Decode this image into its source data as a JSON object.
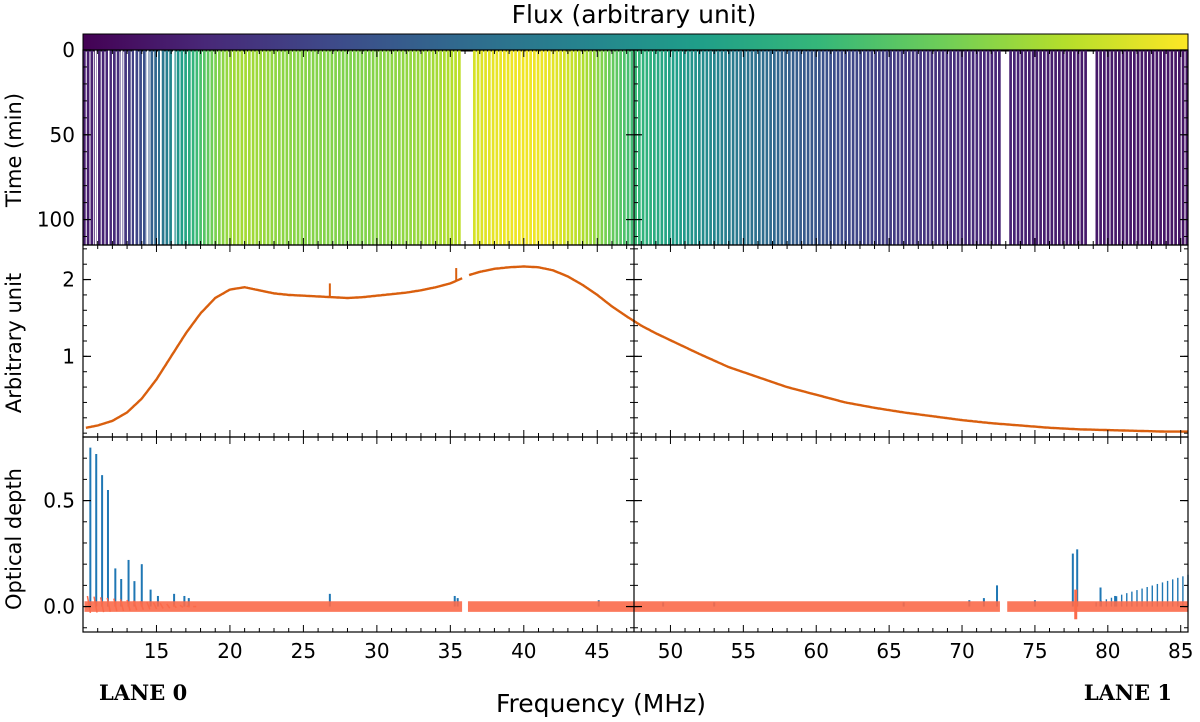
{
  "chart_data": {
    "type": "multi-panel",
    "colorbar": {
      "label": "Flux (arbitrary unit)",
      "colormap": [
        "#440154",
        "#482878",
        "#3e4989",
        "#31688e",
        "#26828e",
        "#1f9e89",
        "#35b779",
        "#6ece58",
        "#b5de2b",
        "#fde725"
      ]
    },
    "xlabel": "Frequency (MHz)",
    "lane_labels": [
      "LANE 0",
      "LANE 1"
    ],
    "lanes": [
      {
        "name": "LANE 0",
        "xlim": [
          10,
          47.5
        ],
        "xticks": [
          15,
          20,
          25,
          30,
          35,
          40,
          45
        ]
      },
      {
        "name": "LANE 1",
        "xlim": [
          47.5,
          85.5
        ],
        "xticks": [
          50,
          55,
          60,
          65,
          70,
          75,
          80,
          85
        ]
      }
    ],
    "panels": [
      {
        "name": "dynamic-spectrum",
        "type": "heatmap",
        "ylabel": "Time (min)",
        "ylim": [
          0,
          115
        ],
        "yticks": [
          0,
          50,
          100
        ],
        "y_inverted": true,
        "flux_profile_key": "spectrum",
        "flagged_ranges_mhz": [
          [
            35.6,
            36.4
          ],
          [
            72.7,
            73.0
          ],
          [
            78.6,
            79.0
          ]
        ]
      },
      {
        "name": "spectrum",
        "type": "line",
        "ylabel": "Arbitrary unit",
        "ylim": [
          -0.05,
          2.45
        ],
        "yticks": [
          1,
          2
        ],
        "color": "#d95f0e",
        "x": [
          10.2,
          11,
          12,
          13,
          14,
          15,
          16,
          17,
          18,
          19,
          20,
          21,
          22,
          23,
          24,
          25,
          26,
          27,
          28,
          29,
          30,
          31,
          32,
          33,
          34,
          35,
          35.6,
          36.3,
          37,
          38,
          39,
          40,
          41,
          42,
          43,
          44,
          45,
          46,
          47,
          48,
          49,
          50,
          52,
          54,
          56,
          58,
          60,
          62,
          64,
          66,
          68,
          70,
          72,
          74,
          76,
          78,
          80,
          82,
          84,
          85.5
        ],
        "values": [
          0.07,
          0.1,
          0.16,
          0.27,
          0.45,
          0.7,
          1.0,
          1.3,
          1.56,
          1.76,
          1.87,
          1.9,
          1.86,
          1.82,
          1.8,
          1.79,
          1.78,
          1.77,
          1.76,
          1.77,
          1.79,
          1.81,
          1.83,
          1.86,
          1.9,
          1.95,
          2.0,
          2.06,
          2.1,
          2.14,
          2.16,
          2.17,
          2.16,
          2.12,
          2.04,
          1.93,
          1.8,
          1.65,
          1.52,
          1.4,
          1.3,
          1.21,
          1.03,
          0.86,
          0.73,
          0.6,
          0.5,
          0.4,
          0.33,
          0.27,
          0.22,
          0.17,
          0.13,
          0.1,
          0.07,
          0.05,
          0.04,
          0.03,
          0.02,
          0.02
        ],
        "spikes": [
          {
            "x": 26.8,
            "value": 1.95
          },
          {
            "x": 35.4,
            "value": 2.15
          }
        ]
      },
      {
        "name": "optical-depth",
        "type": "line",
        "ylabel": "Optical depth",
        "ylim": [
          -0.12,
          0.8
        ],
        "yticks": [
          0.0,
          0.5
        ],
        "ytick_labels": [
          "0.0",
          "0.5"
        ],
        "series": [
          {
            "name": "optical depth",
            "color": "#1f77b4",
            "spikes": [
              {
                "x": 10.5,
                "value": 0.75
              },
              {
                "x": 10.9,
                "value": 0.72
              },
              {
                "x": 11.3,
                "value": 0.62
              },
              {
                "x": 11.7,
                "value": 0.55
              },
              {
                "x": 12.2,
                "value": 0.18
              },
              {
                "x": 12.6,
                "value": 0.13
              },
              {
                "x": 13.1,
                "value": 0.22
              },
              {
                "x": 13.5,
                "value": 0.12
              },
              {
                "x": 14.0,
                "value": 0.2
              },
              {
                "x": 14.6,
                "value": 0.08
              },
              {
                "x": 15.1,
                "value": 0.05
              },
              {
                "x": 16.2,
                "value": 0.06
              },
              {
                "x": 16.9,
                "value": 0.05
              },
              {
                "x": 17.2,
                "value": 0.04
              },
              {
                "x": 26.8,
                "value": 0.06
              },
              {
                "x": 35.3,
                "value": 0.05
              },
              {
                "x": 35.5,
                "value": 0.04
              },
              {
                "x": 45.1,
                "value": 0.03
              },
              {
                "x": 49.5,
                "value": 0.02
              },
              {
                "x": 53.0,
                "value": 0.02
              },
              {
                "x": 66.0,
                "value": 0.02
              },
              {
                "x": 70.5,
                "value": 0.03
              },
              {
                "x": 71.5,
                "value": 0.04
              },
              {
                "x": 72.4,
                "value": 0.1
              },
              {
                "x": 75.0,
                "value": 0.03
              },
              {
                "x": 77.6,
                "value": 0.25
              },
              {
                "x": 77.9,
                "value": 0.27
              },
              {
                "x": 79.5,
                "value": 0.09
              },
              {
                "x": 80.5,
                "value": 0.05
              }
            ],
            "rise": {
              "x_start": 79.2,
              "x_end": 85.5,
              "value_start": 0.02,
              "value_end": 0.15
            }
          },
          {
            "name": "model",
            "color": "#fb6a4a",
            "level": 0.0,
            "band": 0.025
          }
        ]
      }
    ]
  }
}
